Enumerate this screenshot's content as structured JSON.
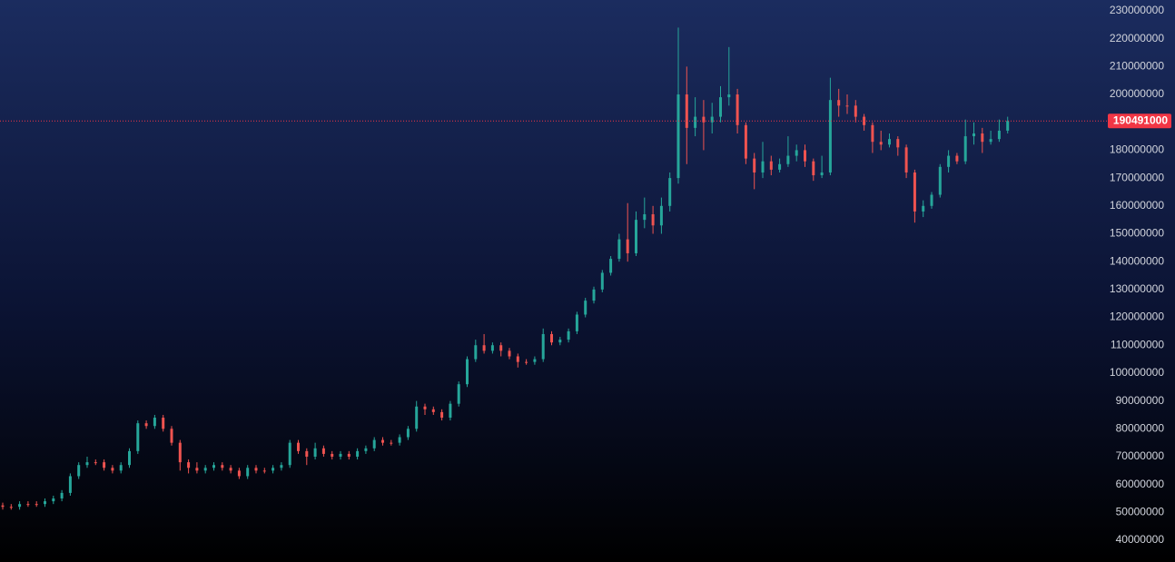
{
  "chart_data": {
    "type": "candlestick",
    "up_color": "#26a69a",
    "down_color": "#ef5350",
    "price_line_color": "#f23645",
    "ylim": [
      32200000,
      233900000
    ],
    "yticks": [
      40000000,
      50000000,
      60000000,
      70000000,
      80000000,
      90000000,
      100000000,
      110000000,
      120000000,
      130000000,
      140000000,
      150000000,
      160000000,
      170000000,
      180000000,
      190000000,
      200000000,
      210000000,
      220000000,
      230000000
    ],
    "last_price": 190491000,
    "open": [
      52500000,
      52000000,
      52000000,
      53000000,
      53000000,
      53000000,
      54000000,
      55000000,
      57000000,
      63000000,
      67000000,
      68000000,
      68000000,
      66000000,
      65000000,
      67000000,
      72000000,
      82000000,
      81000000,
      84000000,
      80000000,
      75000000,
      68000000,
      66000000,
      65000000,
      66000000,
      67000000,
      66000000,
      65000000,
      63000000,
      66000000,
      65000000,
      65000000,
      66000000,
      67000000,
      75000000,
      72000000,
      70000000,
      73000000,
      71000000,
      70000000,
      71000000,
      70000000,
      72000000,
      73000000,
      76000000,
      75000000,
      75000000,
      77000000,
      80000000,
      88000000,
      87000000,
      86000000,
      84000000,
      89000000,
      96000000,
      105000000,
      110000000,
      108000000,
      110000000,
      108000000,
      106000000,
      104000000,
      104000000,
      105000000,
      114000000,
      111000000,
      112000000,
      115000000,
      121000000,
      126000000,
      130000000,
      136000000,
      141000000,
      148000000,
      143000000,
      155000000,
      157000000,
      153000000,
      160000000,
      170000000,
      200000000,
      188000000,
      192000000,
      190000000,
      192000000,
      199000000,
      200000000,
      189000000,
      177000000,
      172000000,
      176000000,
      173000000,
      175000000,
      178000000,
      180000000,
      176000000,
      171000000,
      172000000,
      198000000,
      196000000,
      196000000,
      192000000,
      189000000,
      183000000,
      182000000,
      184000000,
      181000000,
      172000000,
      158000000,
      160000000,
      164000000,
      174000000,
      178000000,
      176000000,
      185000000,
      186000000,
      183000000,
      184000000,
      187000000
    ],
    "high": [
      53500000,
      53000000,
      54000000,
      54000000,
      54000000,
      55000000,
      56000000,
      58000000,
      64000000,
      68000000,
      70000000,
      69000000,
      69000000,
      67000000,
      68000000,
      73000000,
      83000000,
      83000000,
      85000000,
      85000000,
      81000000,
      76000000,
      69000000,
      68000000,
      67000000,
      68000000,
      68000000,
      67000000,
      66000000,
      67000000,
      67000000,
      66000000,
      67000000,
      68000000,
      76000000,
      76000000,
      73000000,
      75000000,
      74000000,
      72000000,
      72000000,
      72000000,
      73000000,
      74000000,
      77000000,
      77000000,
      76000000,
      78000000,
      81000000,
      90000000,
      89000000,
      88000000,
      87000000,
      90000000,
      97000000,
      106000000,
      112000000,
      114000000,
      111000000,
      111000000,
      109000000,
      107000000,
      105000000,
      106000000,
      116000000,
      115000000,
      113000000,
      116000000,
      122000000,
      127000000,
      131000000,
      137000000,
      142000000,
      150000000,
      161000000,
      158000000,
      163000000,
      160000000,
      163000000,
      172000000,
      224000000,
      210000000,
      199000000,
      198000000,
      197000000,
      203000000,
      217000000,
      202000000,
      190000000,
      179000000,
      183000000,
      178000000,
      177000000,
      185000000,
      182000000,
      182000000,
      177000000,
      178000000,
      206000000,
      202000000,
      200000000,
      198000000,
      193000000,
      190000000,
      187000000,
      186000000,
      185000000,
      182000000,
      173000000,
      162000000,
      165000000,
      175000000,
      180000000,
      179000000,
      191000000,
      190000000,
      188000000,
      187000000,
      191000000,
      192000000
    ],
    "low": [
      51000000,
      51000000,
      51000000,
      52000000,
      52000000,
      52000000,
      53000000,
      54000000,
      56000000,
      62000000,
      66000000,
      67000000,
      65000000,
      64000000,
      64000000,
      66000000,
      71000000,
      80000000,
      80000000,
      79000000,
      74000000,
      65000000,
      64000000,
      64000000,
      64000000,
      65000000,
      65000000,
      64000000,
      62000000,
      62000000,
      64000000,
      64000000,
      64000000,
      65000000,
      66000000,
      71000000,
      67000000,
      69000000,
      70000000,
      69000000,
      69000000,
      69000000,
      69000000,
      71000000,
      72000000,
      74000000,
      74000000,
      74000000,
      76000000,
      79000000,
      85000000,
      85000000,
      83000000,
      83000000,
      88000000,
      95000000,
      104000000,
      107000000,
      107000000,
      106000000,
      105000000,
      102000000,
      103000000,
      103000000,
      104000000,
      110000000,
      110000000,
      111000000,
      114000000,
      120000000,
      125000000,
      129000000,
      135000000,
      140000000,
      140000000,
      142000000,
      152000000,
      150000000,
      150000000,
      158000000,
      168000000,
      175000000,
      185000000,
      180000000,
      186000000,
      190000000,
      196000000,
      186000000,
      175000000,
      166000000,
      170000000,
      171000000,
      172000000,
      174000000,
      176000000,
      174000000,
      169000000,
      170000000,
      171000000,
      192000000,
      193000000,
      190000000,
      187000000,
      179000000,
      180000000,
      181000000,
      178000000,
      170000000,
      154000000,
      156000000,
      159000000,
      163000000,
      172000000,
      175000000,
      175000000,
      182000000,
      179000000,
      182000000,
      183000000,
      186000000
    ],
    "close": [
      52000000,
      52000000,
      53000000,
      53000000,
      53000000,
      54000000,
      55000000,
      57000000,
      63000000,
      67000000,
      68000000,
      68000000,
      66000000,
      65000000,
      67000000,
      72000000,
      82000000,
      81000000,
      84000000,
      80000000,
      75000000,
      68000000,
      66000000,
      65000000,
      66000000,
      67000000,
      66000000,
      65000000,
      63000000,
      66000000,
      65000000,
      65000000,
      66000000,
      67000000,
      75000000,
      72000000,
      70000000,
      73000000,
      71000000,
      70000000,
      71000000,
      70000000,
      72000000,
      73000000,
      76000000,
      75000000,
      75000000,
      77000000,
      80000000,
      88000000,
      87000000,
      86000000,
      84000000,
      89000000,
      96000000,
      105000000,
      110000000,
      108000000,
      110000000,
      108000000,
      106000000,
      104000000,
      104000000,
      105000000,
      114000000,
      111000000,
      112000000,
      115000000,
      121000000,
      126000000,
      130000000,
      136000000,
      141000000,
      148000000,
      143000000,
      155000000,
      157000000,
      153000000,
      160000000,
      170000000,
      200000000,
      188000000,
      192000000,
      190000000,
      192000000,
      199000000,
      200000000,
      189000000,
      177000000,
      172000000,
      176000000,
      173000000,
      175000000,
      178000000,
      180000000,
      176000000,
      171000000,
      172000000,
      198000000,
      196000000,
      196000000,
      192000000,
      189000000,
      183000000,
      182000000,
      184000000,
      181000000,
      172000000,
      158000000,
      160000000,
      164000000,
      174000000,
      178000000,
      176000000,
      185000000,
      186000000,
      183000000,
      184000000,
      187000000,
      190491000
    ]
  }
}
